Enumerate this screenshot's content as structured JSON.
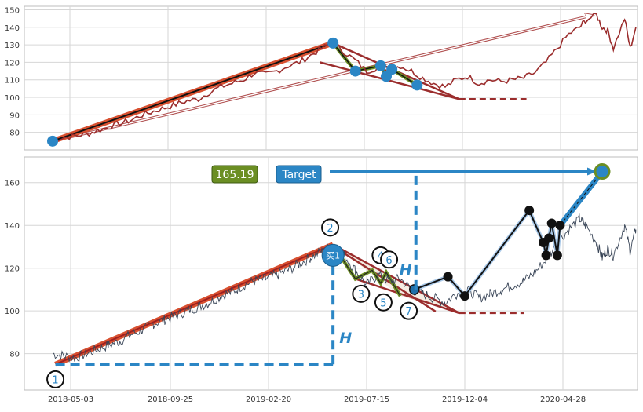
{
  "chart_data": [
    {
      "type": "line",
      "panel": "top",
      "ylim": [
        70,
        152
      ],
      "y_ticks": [
        80,
        90,
        100,
        110,
        120,
        130,
        140,
        150
      ],
      "grid": true,
      "series": [
        {
          "points": [
            [
              0,
              76
            ],
            [
              4,
              77
            ],
            [
              8,
              78
            ],
            [
              12,
              79
            ],
            [
              16,
              81
            ],
            [
              20,
              83
            ],
            [
              24,
              85
            ],
            [
              28,
              87
            ],
            [
              32,
              90
            ],
            [
              36,
              92
            ],
            [
              40,
              94
            ],
            [
              44,
              96
            ],
            [
              48,
              98
            ],
            [
              52,
              99
            ],
            [
              56,
              103
            ],
            [
              60,
              106
            ],
            [
              64,
              108
            ],
            [
              68,
              110
            ],
            [
              72,
              114
            ],
            [
              76,
              113
            ],
            [
              80,
              115
            ],
            [
              84,
              118
            ],
            [
              88,
              120
            ],
            [
              92,
              124
            ],
            [
              96,
              128
            ],
            [
              100,
              131
            ],
            [
              104,
              126
            ],
            [
              108,
              121
            ],
            [
              112,
              115
            ],
            [
              116,
              117
            ],
            [
              120,
              116
            ],
            [
              124,
              118
            ],
            [
              128,
              115
            ],
            [
              132,
              111
            ],
            [
              136,
              108
            ],
            [
              140,
              106
            ],
            [
              144,
              110
            ],
            [
              148,
              112
            ],
            [
              152,
              108
            ],
            [
              156,
              110
            ],
            [
              160,
              109
            ],
            [
              164,
              110
            ],
            [
              168,
              111
            ],
            [
              172,
              114
            ],
            [
              176,
              120
            ],
            [
              180,
              128
            ],
            [
              184,
              136
            ],
            [
              188,
              140
            ],
            [
              190,
              144
            ],
            [
              194,
              147
            ],
            [
              196,
              140
            ],
            [
              198,
              138
            ],
            [
              200,
              128
            ],
            [
              204,
              145
            ],
            [
              206,
              128
            ],
            [
              208,
              140
            ]
          ],
          "color": "#9b2d2d"
        }
      ],
      "pattern": {
        "points": [
          [
            0,
            75
          ],
          [
            100,
            131
          ],
          [
            108,
            115
          ],
          [
            117,
            118
          ],
          [
            119,
            112
          ],
          [
            121,
            116
          ],
          [
            130,
            107
          ]
        ],
        "apex": [
          145,
          99
        ],
        "dashed_to": [
          169,
          99
        ],
        "arrow_to": [
          193,
          147
        ]
      }
    },
    {
      "type": "line",
      "panel": "bottom",
      "ylim": [
        63,
        172
      ],
      "y_ticks": [
        80,
        100,
        120,
        140,
        160
      ],
      "x_ticks": [
        "2018-05-03",
        "2018-09-25",
        "2019-02-20",
        "2019-07-15",
        "2019-12-04",
        "2020-04-28"
      ],
      "grid": true,
      "series": [
        {
          "points": [
            [
              0,
              80
            ],
            [
              4,
              79
            ],
            [
              8,
              78
            ],
            [
              12,
              80
            ],
            [
              16,
              82
            ],
            [
              20,
              84
            ],
            [
              24,
              86
            ],
            [
              28,
              89
            ],
            [
              32,
              91
            ],
            [
              36,
              94
            ],
            [
              40,
              96
            ],
            [
              44,
              98
            ],
            [
              48,
              100
            ],
            [
              52,
              102
            ],
            [
              56,
              104
            ],
            [
              60,
              107
            ],
            [
              64,
              109
            ],
            [
              68,
              112
            ],
            [
              72,
              114
            ],
            [
              76,
              115
            ],
            [
              80,
              117
            ],
            [
              84,
              119
            ],
            [
              88,
              122
            ],
            [
              92,
              125
            ],
            [
              96,
              128
            ],
            [
              100,
              131
            ],
            [
              104,
              126
            ],
            [
              108,
              119
            ],
            [
              112,
              112
            ],
            [
              116,
              117
            ],
            [
              120,
              114
            ],
            [
              124,
              115
            ],
            [
              128,
              110
            ],
            [
              132,
              108
            ],
            [
              136,
              106
            ],
            [
              140,
              104
            ],
            [
              144,
              108
            ],
            [
              148,
              110
            ],
            [
              152,
              106
            ],
            [
              156,
              108
            ],
            [
              160,
              110
            ],
            [
              164,
              112
            ],
            [
              168,
              114
            ],
            [
              172,
              118
            ],
            [
              176,
              124
            ],
            [
              180,
              132
            ],
            [
              184,
              138
            ],
            [
              188,
              143
            ],
            [
              190,
              140
            ],
            [
              194,
              132
            ],
            [
              196,
              125
            ],
            [
              198,
              129
            ],
            [
              200,
              126
            ],
            [
              204,
              140
            ],
            [
              206,
              128
            ],
            [
              208,
              138
            ]
          ],
          "color": "#3a4658"
        }
      ],
      "pattern": {
        "points": [
          [
            1,
            75
          ],
          [
            100,
            131
          ],
          [
            108,
            115
          ],
          [
            114,
            119
          ],
          [
            117,
            113
          ],
          [
            119,
            118
          ],
          [
            124,
            107
          ],
          [
            129,
            110
          ]
        ],
        "apex": [
          145,
          99
        ],
        "dashed_to": [
          168,
          99
        ]
      },
      "post_path": [
        [
          129,
          110
        ],
        [
          141,
          116
        ],
        [
          147,
          107
        ],
        [
          170,
          147
        ],
        [
          175,
          132
        ],
        [
          176,
          126
        ],
        [
          177,
          134
        ],
        [
          178,
          141
        ],
        [
          180,
          126
        ],
        [
          181,
          140
        ],
        [
          196,
          165
        ]
      ],
      "target_value": 165.19,
      "target_label": "Target",
      "buy_label": "买1",
      "h_label": "H",
      "pivot_labels": [
        {
          "label": "1",
          "x": 1,
          "y": 68
        },
        {
          "label": "2",
          "x": 99,
          "y": 139
        },
        {
          "label": "3",
          "x": 110,
          "y": 108
        },
        {
          "label": "4",
          "x": 117,
          "y": 126
        },
        {
          "label": "5",
          "x": 118,
          "y": 104
        },
        {
          "label": "6",
          "x": 120,
          "y": 124
        },
        {
          "label": "7",
          "x": 127,
          "y": 100
        }
      ]
    }
  ]
}
